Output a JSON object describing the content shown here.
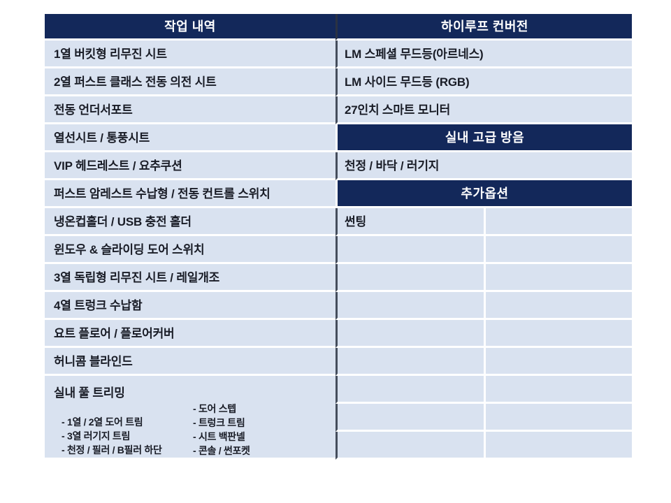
{
  "table": {
    "header": {
      "left": "작업 내역",
      "right": "하이루프 컨버전"
    },
    "left_rows": [
      "1열 버킷형 리무진 시트",
      "2열 퍼스트 클래스 전동 의전 시트",
      "전동 언더서포트",
      "열선시트 / 통풍시트",
      "VIP 헤드레스트 / 요추쿠션",
      "퍼스트 암레스트 수납형 / 전동 컨트롤 스위치",
      "냉온컵홀더 / USB 충전 홀더",
      "윈도우 & 슬라이딩 도어 스위치",
      "3열 독립형 리무진 시트 / 레일개조",
      "4열 트렁크 수납함",
      "요트 플로어 / 플로어커버",
      "허니콤 블라인드"
    ],
    "trimming": {
      "title": "실내 풀 트리밍",
      "list_a": [
        "- 1열 / 2열 도어 트림",
        "- 3열 러기지 트림",
        "- 천정 / 필러 / B필러 하단"
      ],
      "list_b": [
        "- 도어 스텝",
        "- 트렁크 트림",
        "- 시트 백판넬",
        "- 콘솔 / 썬포켓"
      ]
    },
    "right_rows": [
      "LM 스페셜 무드등(아르네스)",
      "LM 사이드 무드등 (RGB)",
      "27인치 스마트 모니터"
    ],
    "section_soundproof": {
      "header": "실내 고급 방음",
      "row": "천정 / 바닥 / 러기지"
    },
    "section_options": {
      "header": "추가옵션",
      "first_cell": "썬팅"
    }
  },
  "colors": {
    "header_navy": "#13285a",
    "cell_blue": "#d9e2f0",
    "divider_dark": "#454d5c",
    "divider_white": "#ffffff",
    "header_text": "#ffffff",
    "body_text": "#191c26"
  }
}
